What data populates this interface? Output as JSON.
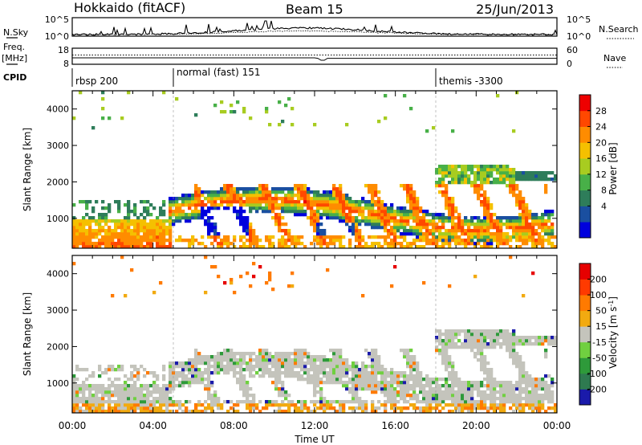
{
  "header": {
    "station": "Hokkaido (fitACF)",
    "beam": "Beam 15",
    "date": "25/Jun/2013"
  },
  "nsky_panel": {
    "left_label": "N.Sky",
    "left_ticks": [
      "10^5",
      "10^0"
    ],
    "right_ticks": [
      "10^5",
      "10^0"
    ],
    "right_label": "N.Search"
  },
  "freq_panel": {
    "left_label_1": "Freq.",
    "left_label_2": "[MHz]",
    "left_ticks": [
      "18",
      "8"
    ],
    "right_ticks": [
      "60",
      "0"
    ],
    "right_label": "Nave"
  },
  "cpid_panel": {
    "label": "CPID",
    "segments": [
      {
        "label": "rbsp 200",
        "start_hour": 0
      },
      {
        "label": "normal (fast) 151",
        "start_hour": 5
      },
      {
        "label": "themis -3300",
        "start_hour": 18
      }
    ]
  },
  "chart_data": [
    {
      "type": "heatmap",
      "name": "power",
      "ylabel": "Slant Range [km]",
      "xlim_hours": [
        0,
        24
      ],
      "ylim": [
        180,
        4500
      ],
      "yticks": [
        "1000",
        "2000",
        "3000",
        "4000"
      ],
      "colorbar_label": "Power [dB]",
      "colorbar_ticks": [
        "28",
        "24",
        "20",
        "16",
        "12",
        "8",
        "4"
      ],
      "colorbar_colors": [
        "#0000dd",
        "#1a4fa0",
        "#2e7d5a",
        "#48b048",
        "#a8cc20",
        "#f5c000",
        "#ff8c00",
        "#ff4800",
        "#ee0000"
      ]
    },
    {
      "type": "heatmap",
      "name": "velocity",
      "ylabel": "Slant Range [km]",
      "xlabel": "Time UT",
      "xlim_hours": [
        0,
        24
      ],
      "ylim": [
        180,
        4500
      ],
      "yticks": [
        "1000",
        "2000",
        "3000",
        "4000"
      ],
      "xticks": [
        "00:00",
        "04:00",
        "08:00",
        "12:00",
        "16:00",
        "20:00",
        "00:00"
      ],
      "colorbar_label": "Velocity [m s",
      "colorbar_label_sup": "-1",
      "colorbar_label_end": "]",
      "colorbar_ticks": [
        "200",
        "100",
        "50",
        "15",
        "-15",
        "-50",
        "-100",
        "-200"
      ],
      "colorbar_colors": [
        "#1a1aaa",
        "#2e7a50",
        "#2e9a3a",
        "#70d040",
        "#c4c4bc",
        "#f2aa10",
        "#ff7a00",
        "#ff3a00",
        "#e60000"
      ]
    }
  ]
}
